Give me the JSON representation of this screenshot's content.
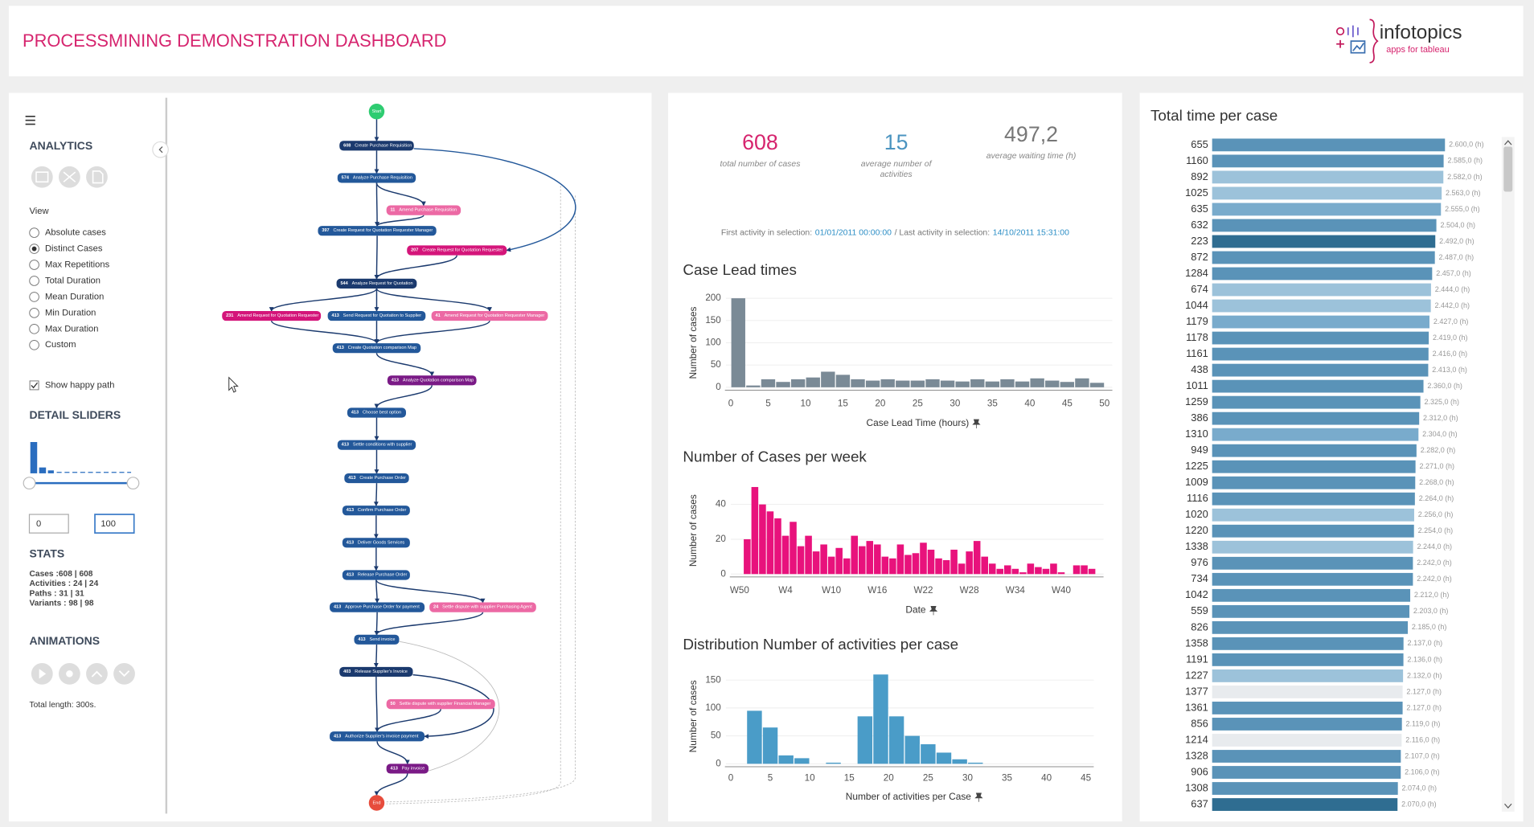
{
  "header": {
    "title": "PROCESSMINING DEMONSTRATION DASHBOARD",
    "logo": {
      "name": "infotopics",
      "tagline": "apps for tableau"
    }
  },
  "sidebar": {
    "analytics": "ANALYTICS",
    "view_label": "View",
    "view_options": [
      {
        "label": "Absolute cases",
        "checked": false
      },
      {
        "label": "Distinct Cases",
        "checked": true
      },
      {
        "label": "Max Repetitions",
        "checked": false
      },
      {
        "label": "Total Duration",
        "checked": false
      },
      {
        "label": "Mean Duration",
        "checked": false
      },
      {
        "label": "Min Duration",
        "checked": false
      },
      {
        "label": "Max Duration",
        "checked": false
      },
      {
        "label": "Custom",
        "checked": false
      }
    ],
    "happy_path": {
      "label": "Show happy path",
      "checked": true
    },
    "detail_sliders": "DETAIL SLIDERS",
    "slider_min": 0,
    "slider_max": 100,
    "stats": {
      "title": "STATS",
      "lines": [
        "Cases :608 | 608",
        "Activities : 24 | 24",
        "Paths : 31 | 31",
        "Variants : 98 | 98"
      ]
    },
    "animations": {
      "title": "ANIMATIONS",
      "total_length": "Total length: 300s."
    }
  },
  "process_map": {
    "start": "Start",
    "end": "End",
    "nodes": [
      {
        "count": 608,
        "label": "Create Purchase Requisition",
        "color": "#1b3a6e"
      },
      {
        "count": 574,
        "label": "Analyze Purchase Requisition",
        "color": "#23589a"
      },
      {
        "count": 11,
        "label": "Amend Purchase Requisition",
        "color": "#ec69a4"
      },
      {
        "count": 397,
        "label": "Create Request for Quotation Requester Manager",
        "color": "#23589a"
      },
      {
        "count": 207,
        "label": "Create Request for Quotation Requester",
        "color": "#d4157a"
      },
      {
        "count": 544,
        "label": "Analyze Request for Quotation",
        "color": "#1b3a6e"
      },
      {
        "count": 231,
        "label": "Amend Request for Quotation Requester",
        "color": "#d4157a"
      },
      {
        "count": 413,
        "label": "Send Request for Quotation to Supplier",
        "color": "#23589a"
      },
      {
        "count": 41,
        "label": "Amend Request for Quotation Requester Manager",
        "color": "#ec69a4"
      },
      {
        "count": 413,
        "label": "Create Quotation comparison Map",
        "color": "#23589a"
      },
      {
        "count": 413,
        "label": "Analyze Quotation comparison Map",
        "color": "#7a1a86"
      },
      {
        "count": 413,
        "label": "Choose best option",
        "color": "#23589a"
      },
      {
        "count": 413,
        "label": "Settle conditions with supplier",
        "color": "#23589a"
      },
      {
        "count": 413,
        "label": "Create Purchase Order",
        "color": "#23589a"
      },
      {
        "count": 413,
        "label": "Confirm Purchase Order",
        "color": "#23589a"
      },
      {
        "count": 413,
        "label": "Deliver Goods Services",
        "color": "#23589a"
      },
      {
        "count": 413,
        "label": "Release Purchase Order",
        "color": "#23589a"
      },
      {
        "count": 413,
        "label": "Approve Purchase Order for payment",
        "color": "#23589a"
      },
      {
        "count": 24,
        "label": "Settle dispute with supplier Purchasing Agent",
        "color": "#ec69a4"
      },
      {
        "count": 413,
        "label": "Send invoice",
        "color": "#23589a"
      },
      {
        "count": 403,
        "label": "Release Supplier's Invoice",
        "color": "#1b3a6e"
      },
      {
        "count": 50,
        "label": "Settle dispute with supplier Financial Manager",
        "color": "#ec69a4"
      },
      {
        "count": 413,
        "label": "Authorize Supplier's invoice payment",
        "color": "#23589a"
      },
      {
        "count": 413,
        "label": "Pay invoice",
        "color": "#7a1a86"
      }
    ]
  },
  "kpis": [
    {
      "value": 608,
      "label": "total number of cases",
      "color": "#d6246e"
    },
    {
      "value": 15,
      "label": "average number of activities",
      "color": "#4b94c0"
    },
    {
      "value": 497.2,
      "value_label": "497,2",
      "label": "average waiting time (h)",
      "color": "#777777"
    }
  ],
  "selection": {
    "first_label": "First activity in selection:",
    "first": "01/01/2011 00:00:00",
    "last_label": "/ Last activity in selection:",
    "last": "14/10/2011 15:31:00"
  },
  "chart_data": [
    {
      "type": "histogram",
      "title": "Case Lead times",
      "xlabel": "Case Lead Time (hours)",
      "ylabel": "Number of cases",
      "color": "#7a8a96",
      "bins": [
        0,
        2,
        4,
        6,
        8,
        10,
        12,
        14,
        16,
        18,
        20,
        22,
        24,
        26,
        28,
        30,
        32,
        34,
        36,
        38,
        40,
        42,
        44,
        46,
        48,
        50
      ],
      "values": [
        200,
        4,
        18,
        12,
        18,
        22,
        35,
        28,
        18,
        15,
        18,
        15,
        15,
        18,
        15,
        13,
        18,
        13,
        18,
        13,
        20,
        15,
        12,
        20,
        10
      ],
      "xlim": [
        0,
        50
      ],
      "ylim": [
        0,
        200
      ],
      "xticks": [
        0,
        5,
        10,
        15,
        20,
        25,
        30,
        35,
        40,
        45,
        50
      ],
      "yticks": [
        0,
        50,
        100,
        150,
        200
      ],
      "grid": true
    },
    {
      "type": "bar",
      "title": "Number of Cases per week",
      "xlabel": "Date",
      "ylabel": "Number of cases",
      "color": "#e8127c",
      "categories": [
        "W50",
        null,
        null,
        null,
        null,
        null,
        "W4",
        null,
        null,
        null,
        null,
        null,
        "W10",
        null,
        null,
        null,
        null,
        null,
        "W16",
        null,
        null,
        null,
        null,
        null,
        "W22",
        null,
        null,
        null,
        null,
        null,
        "W28",
        null,
        null,
        null,
        null,
        null,
        "W34",
        null,
        null,
        null,
        null,
        null,
        "W40",
        null,
        null,
        null,
        null
      ],
      "values": [
        0,
        20,
        50,
        40,
        36,
        32,
        22,
        30,
        16,
        22,
        13,
        17,
        10,
        15,
        9,
        22,
        16,
        19,
        17,
        10,
        9,
        17,
        11,
        12,
        18,
        14,
        9,
        8,
        14,
        6,
        13,
        19,
        10,
        6,
        3,
        5,
        3,
        1,
        6,
        4,
        3,
        6,
        1,
        0,
        5,
        5,
        3
      ],
      "ylim": [
        0,
        50
      ],
      "yticks": [
        0,
        20,
        40
      ],
      "grid": true
    },
    {
      "type": "histogram",
      "title": "Distribution Number of activities per case",
      "xlabel": "Number of activities per Case",
      "ylabel": "Number of cases",
      "color": "#4a9cc8",
      "bins": [
        2,
        4,
        6,
        8,
        10,
        12,
        14,
        16,
        18,
        20,
        22,
        24,
        26,
        28,
        30,
        32
      ],
      "values": [
        95,
        65,
        15,
        10,
        0,
        2,
        0,
        85,
        160,
        85,
        50,
        35,
        20,
        8,
        2
      ],
      "xlim": [
        0,
        45
      ],
      "ylim": [
        0,
        170
      ],
      "xticks": [
        0,
        5,
        10,
        15,
        20,
        25,
        30,
        35,
        40,
        45
      ],
      "yticks": [
        0,
        50,
        100,
        150
      ],
      "grid": true
    },
    {
      "type": "hbar",
      "title": "Total time per case",
      "xlim": [
        0,
        2600
      ],
      "categories": [
        "655",
        "1160",
        "892",
        "1025",
        "635",
        "632",
        "223",
        "872",
        "1284",
        "674",
        "1044",
        "1179",
        "1178",
        "1161",
        "438",
        "1011",
        "1259",
        "386",
        "1310",
        "949",
        "1225",
        "1009",
        "1116",
        "1020",
        "1220",
        "1338",
        "976",
        "734",
        "1042",
        "559",
        "826",
        "1358",
        "1191",
        "1227",
        "1377",
        "1361",
        "856",
        "1214",
        "1328",
        "906",
        "1308",
        "637"
      ],
      "values": [
        2600,
        2585,
        2582,
        2563,
        2555,
        2504,
        2492,
        2487,
        2457,
        2444,
        2442,
        2427,
        2419,
        2416,
        2413,
        2360,
        2325,
        2312,
        2304,
        2282,
        2271,
        2268,
        2264,
        2256,
        2254,
        2244,
        2242,
        2242,
        2212,
        2203,
        2185,
        2137,
        2136,
        2132,
        2127,
        2127,
        2119,
        2116,
        2107,
        2106,
        2074,
        2070
      ],
      "value_labels": [
        "2.600,0 (h)",
        "2.585,0 (h)",
        "2.582,0 (h)",
        "2.563,0 (h)",
        "2.555,0 (h)",
        "2.504,0 (h)",
        "2.492,0 (h)",
        "2.487,0 (h)",
        "2.457,0 (h)",
        "2.444,0 (h)",
        "2.442,0 (h)",
        "2.427,0 (h)",
        "2.419,0 (h)",
        "2.416,0 (h)",
        "2.413,0 (h)",
        "2.360,0 (h)",
        "2.325,0 (h)",
        "2.312,0 (h)",
        "2.304,0 (h)",
        "2.282,0 (h)",
        "2.271,0 (h)",
        "2.268,0 (h)",
        "2.264,0 (h)",
        "2.256,0 (h)",
        "2.254,0 (h)",
        "2.244,0 (h)",
        "2.242,0 (h)",
        "2.242,0 (h)",
        "2.212,0 (h)",
        "2.203,0 (h)",
        "2.185,0 (h)",
        "2.137,0 (h)",
        "2.136,0 (h)",
        "2.132,0 (h)",
        "2.127,0 (h)",
        "2.127,0 (h)",
        "2.119,0 (h)",
        "2.116,0 (h)",
        "2.107,0 (h)",
        "2.106,0 (h)",
        "2.074,0 (h)",
        "2.070,0 (h)"
      ],
      "colors": [
        "#5a93b8",
        "#5a93b8",
        "#9cc2da",
        "#9cc2da",
        "#79abcc",
        "#5a93b8",
        "#2f6d91",
        "#5a93b8",
        "#5a93b8",
        "#9cc2da",
        "#9cc2da",
        "#79abcc",
        "#5a93b8",
        "#5a93b8",
        "#5a93b8",
        "#5a93b8",
        "#5a93b8",
        "#5a93b8",
        "#79abcc",
        "#5a93b8",
        "#5a93b8",
        "#5a93b8",
        "#5a93b8",
        "#9cc2da",
        "#5a93b8",
        "#9cc2da",
        "#5a93b8",
        "#5a93b8",
        "#5a93b8",
        "#5a93b8",
        "#5a93b8",
        "#5a93b8",
        "#5a93b8",
        "#9cc2da",
        "#e8ebee",
        "#5a93b8",
        "#5a93b8",
        "#e8ebee",
        "#5a93b8",
        "#5a93b8",
        "#5a93b8",
        "#2f6d91"
      ]
    }
  ]
}
